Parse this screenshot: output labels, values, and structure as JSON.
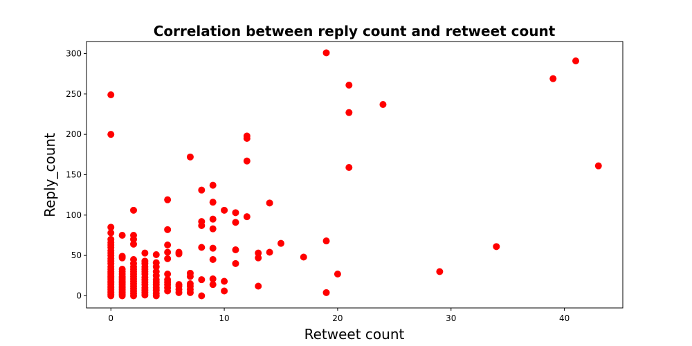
{
  "chart_data": {
    "type": "scatter",
    "title": "Correlation between reply count and retweet count",
    "xlabel": "Retweet count",
    "ylabel": "Reply_count",
    "xlim": [
      -2.15,
      45.15
    ],
    "ylim": [
      -15,
      315
    ],
    "xticks": [
      0,
      10,
      20,
      30,
      40
    ],
    "yticks": [
      0,
      50,
      100,
      150,
      200,
      250,
      300
    ],
    "grid": false,
    "legend": "none",
    "marker_color": "#ff0000",
    "points": [
      [
        0,
        0
      ],
      [
        0,
        2
      ],
      [
        0,
        4
      ],
      [
        0,
        6
      ],
      [
        0,
        8
      ],
      [
        0,
        10
      ],
      [
        0,
        12
      ],
      [
        0,
        14
      ],
      [
        0,
        16
      ],
      [
        0,
        18
      ],
      [
        0,
        20
      ],
      [
        0,
        22
      ],
      [
        0,
        24
      ],
      [
        0,
        26
      ],
      [
        0,
        28
      ],
      [
        0,
        30
      ],
      [
        0,
        33
      ],
      [
        0,
        36
      ],
      [
        0,
        40
      ],
      [
        0,
        43
      ],
      [
        0,
        46
      ],
      [
        0,
        50
      ],
      [
        0,
        53
      ],
      [
        0,
        56
      ],
      [
        0,
        60
      ],
      [
        0,
        63
      ],
      [
        0,
        66
      ],
      [
        0,
        70
      ],
      [
        0,
        78
      ],
      [
        0,
        85
      ],
      [
        0,
        200
      ],
      [
        0,
        249
      ],
      [
        1,
        0
      ],
      [
        1,
        2
      ],
      [
        1,
        4
      ],
      [
        1,
        6
      ],
      [
        1,
        8
      ],
      [
        1,
        10
      ],
      [
        1,
        12
      ],
      [
        1,
        14
      ],
      [
        1,
        16
      ],
      [
        1,
        18
      ],
      [
        1,
        20
      ],
      [
        1,
        22
      ],
      [
        1,
        24
      ],
      [
        1,
        27
      ],
      [
        1,
        30
      ],
      [
        1,
        33
      ],
      [
        1,
        47
      ],
      [
        1,
        49
      ],
      [
        1,
        75
      ],
      [
        2,
        0
      ],
      [
        2,
        3
      ],
      [
        2,
        6
      ],
      [
        2,
        9
      ],
      [
        2,
        12
      ],
      [
        2,
        15
      ],
      [
        2,
        18
      ],
      [
        2,
        21
      ],
      [
        2,
        24
      ],
      [
        2,
        27
      ],
      [
        2,
        30
      ],
      [
        2,
        33
      ],
      [
        2,
        36
      ],
      [
        2,
        40
      ],
      [
        2,
        45
      ],
      [
        2,
        64
      ],
      [
        2,
        70
      ],
      [
        2,
        75
      ],
      [
        2,
        106
      ],
      [
        3,
        1
      ],
      [
        3,
        4
      ],
      [
        3,
        7
      ],
      [
        3,
        10
      ],
      [
        3,
        14
      ],
      [
        3,
        17
      ],
      [
        3,
        20
      ],
      [
        3,
        23
      ],
      [
        3,
        27
      ],
      [
        3,
        30
      ],
      [
        3,
        33
      ],
      [
        3,
        36
      ],
      [
        3,
        40
      ],
      [
        3,
        43
      ],
      [
        3,
        53
      ],
      [
        4,
        0
      ],
      [
        4,
        3
      ],
      [
        4,
        7
      ],
      [
        4,
        10
      ],
      [
        4,
        14
      ],
      [
        4,
        17
      ],
      [
        4,
        20
      ],
      [
        4,
        25
      ],
      [
        4,
        30
      ],
      [
        4,
        36
      ],
      [
        4,
        41
      ],
      [
        4,
        51
      ],
      [
        5,
        6
      ],
      [
        5,
        10
      ],
      [
        5,
        14
      ],
      [
        5,
        17
      ],
      [
        5,
        20
      ],
      [
        5,
        27
      ],
      [
        5,
        46
      ],
      [
        5,
        54
      ],
      [
        5,
        63
      ],
      [
        5,
        82
      ],
      [
        5,
        119
      ],
      [
        6,
        4
      ],
      [
        6,
        8
      ],
      [
        6,
        12
      ],
      [
        6,
        14
      ],
      [
        6,
        52
      ],
      [
        6,
        54
      ],
      [
        7,
        4
      ],
      [
        7,
        8
      ],
      [
        7,
        12
      ],
      [
        7,
        15
      ],
      [
        7,
        24
      ],
      [
        7,
        28
      ],
      [
        7,
        172
      ],
      [
        8,
        0
      ],
      [
        8,
        20
      ],
      [
        8,
        60
      ],
      [
        8,
        87
      ],
      [
        8,
        92
      ],
      [
        8,
        131
      ],
      [
        9,
        14
      ],
      [
        9,
        21
      ],
      [
        9,
        45
      ],
      [
        9,
        59
      ],
      [
        9,
        83
      ],
      [
        9,
        95
      ],
      [
        9,
        116
      ],
      [
        9,
        137
      ],
      [
        10,
        6
      ],
      [
        10,
        18
      ],
      [
        10,
        106
      ],
      [
        11,
        40
      ],
      [
        11,
        57
      ],
      [
        11,
        91
      ],
      [
        11,
        103
      ],
      [
        12,
        98
      ],
      [
        12,
        167
      ],
      [
        12,
        195
      ],
      [
        12,
        198
      ],
      [
        13,
        12
      ],
      [
        13,
        47
      ],
      [
        13,
        53
      ],
      [
        14,
        54
      ],
      [
        14,
        115
      ],
      [
        15,
        65
      ],
      [
        17,
        48
      ],
      [
        19,
        4
      ],
      [
        19,
        68
      ],
      [
        19,
        301
      ],
      [
        20,
        27
      ],
      [
        21,
        159
      ],
      [
        21,
        227
      ],
      [
        21,
        261
      ],
      [
        24,
        237
      ],
      [
        29,
        30
      ],
      [
        34,
        61
      ],
      [
        39,
        269
      ],
      [
        41,
        291
      ],
      [
        43,
        161
      ]
    ]
  }
}
